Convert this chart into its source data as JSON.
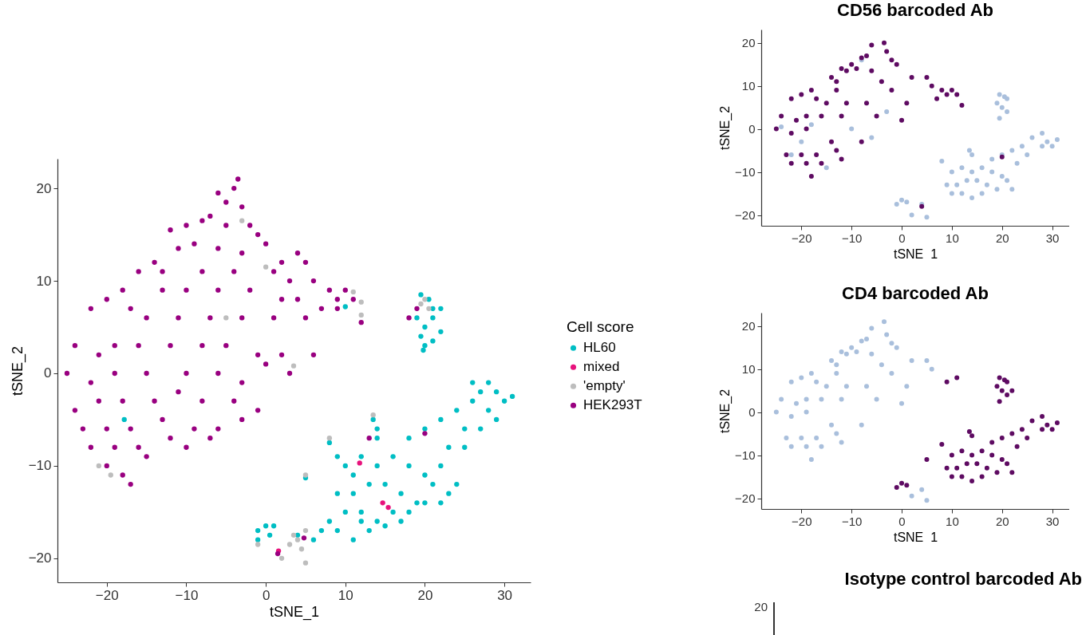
{
  "chart_data": [
    {
      "type": "scatter",
      "xlabel": "tSNE_1",
      "ylabel": "tSNE_2",
      "legend_title": "Cell score",
      "legend": "right",
      "marker": "circle",
      "grid": false,
      "xlim": [
        -26.2,
        33.3
      ],
      "ylim": [
        -22.6,
        23.2
      ],
      "xticks": [
        -20,
        -10,
        0,
        10,
        20,
        30
      ],
      "yticks": [
        -20,
        -10,
        0,
        10,
        20
      ],
      "series": [
        {
          "name": "HL60",
          "color": "#00bec4",
          "x": [
            19.5,
            20.5,
            21,
            22,
            19,
            20,
            21,
            19.5,
            20,
            21,
            19.8,
            22,
            13.5,
            14,
            14,
            8,
            9,
            10,
            11,
            12,
            14,
            16,
            18,
            20,
            22,
            24,
            26,
            27,
            28,
            29,
            30,
            31,
            28,
            26,
            29,
            25,
            23,
            22,
            21,
            23,
            20,
            18,
            17,
            15,
            13,
            11,
            9,
            10,
            8,
            12,
            14,
            16,
            17,
            18,
            19,
            20,
            22,
            13,
            11,
            9,
            7,
            6,
            15,
            12,
            24,
            25,
            27,
            5,
            0,
            -1,
            0.5,
            -1,
            1,
            4,
            -17.8,
            10
          ],
          "values": [
            8.5,
            8,
            7,
            7,
            6,
            5,
            6,
            4,
            3,
            3.5,
            2.5,
            4.5,
            -5,
            -6,
            -7,
            -7.5,
            -9,
            -10,
            -11,
            -9,
            -10,
            -9,
            -7,
            -6,
            -5,
            -4,
            -1,
            -2,
            -1,
            -2,
            -3,
            -2.5,
            -4,
            -3,
            -5,
            -6,
            -8,
            -10,
            -12,
            -13,
            -11,
            -10,
            -13,
            -12,
            -12,
            -13,
            -13,
            -15,
            -16,
            -15,
            -16,
            -15,
            -16,
            -15,
            -14,
            -14,
            -14,
            -17,
            -18,
            -17,
            -17,
            -18,
            -16.5,
            -16,
            -12,
            -8,
            -6,
            -11.3,
            -16.5,
            -17,
            -17.5,
            -18,
            -16.5,
            -17.5,
            -5,
            7.2
          ]
        },
        {
          "name": "mixed",
          "color": "#e7127c",
          "x": [
            11.8,
            14.7,
            15.4,
            1.6
          ],
          "values": [
            -9.7,
            -14,
            -14.5,
            -19.2
          ]
        },
        {
          "name": "'empty'",
          "color": "#bdbdbd",
          "x": [
            -3,
            0,
            -5,
            11,
            12,
            12,
            3.5,
            -21,
            -19.5,
            19.5,
            20,
            20.5,
            8,
            5,
            -1,
            2,
            5,
            3.5,
            4,
            4.5,
            5,
            3,
            13.5
          ],
          "values": [
            16.5,
            11.5,
            6,
            8.8,
            7.7,
            6.3,
            0.8,
            -10,
            -11,
            7.5,
            8,
            7,
            -7,
            -11,
            -18.5,
            -20,
            -20.5,
            -17.5,
            -18,
            -19,
            -17,
            -18.5,
            -4.5
          ]
        },
        {
          "name": "HEK293T",
          "color": "#990080",
          "x": [
            -3.5,
            -4,
            -6,
            -5,
            -3,
            -7,
            -8,
            -5,
            -2,
            -10,
            -12,
            -1,
            0,
            -9,
            -11,
            -6,
            -3,
            -14,
            -16,
            -13,
            -8,
            -4,
            1,
            2,
            4,
            5,
            3,
            6,
            8,
            10,
            11,
            9,
            7,
            4,
            2,
            -2,
            -6,
            -10,
            -13,
            -18,
            -20,
            -22,
            -17,
            -15,
            -11,
            -7,
            -3,
            1,
            5,
            9,
            12,
            -24,
            -21,
            -19,
            -16,
            -12,
            -8,
            -5,
            -1,
            2,
            6,
            -25,
            -22,
            -19,
            -15,
            -10,
            -6,
            -3,
            0,
            3,
            -24,
            -21,
            -18,
            -14,
            -11,
            -8,
            -4,
            -1,
            -23,
            -20,
            -17,
            -13,
            -9,
            -6,
            -22,
            -19,
            -16,
            -12,
            -20,
            -18,
            -17,
            -15,
            -10,
            -7,
            -3,
            18,
            19,
            20,
            13,
            1.5,
            4.8
          ],
          "values": [
            21,
            20,
            19.5,
            18.5,
            18,
            17,
            16.5,
            16,
            16,
            16,
            15.5,
            15,
            14,
            14,
            13.5,
            13.5,
            13,
            12,
            11,
            11,
            11,
            11,
            11,
            12,
            13,
            12,
            10,
            10,
            9,
            9,
            8,
            8,
            7,
            8,
            8,
            9,
            9,
            9,
            9,
            9,
            8,
            7,
            7,
            6,
            6,
            6,
            6,
            6,
            6,
            7,
            5.5,
            3,
            2,
            3,
            3,
            3,
            3,
            3,
            2,
            2,
            2,
            0,
            -1,
            0,
            0,
            0,
            0,
            -1,
            1,
            0,
            -4,
            -3,
            -3,
            -3,
            -2,
            -3,
            -3,
            -4,
            -6,
            -6,
            -6,
            -5,
            -6,
            -6,
            -8,
            -8,
            -8,
            -7,
            -10,
            -11,
            -12,
            -9,
            -8,
            -7,
            -5,
            6,
            7,
            -6.5,
            -7,
            -19.5,
            -17.8
          ]
        }
      ]
    },
    {
      "type": "scatter",
      "title": "CD56 barcoded Ab",
      "xlabel": "tSNE_1",
      "ylabel": "tSNE_2",
      "marker": "circle",
      "grid": false,
      "xlim": [
        -28,
        33.4
      ],
      "ylim": [
        -22.5,
        23.1
      ],
      "xticks": [
        -20,
        -10,
        0,
        10,
        20,
        30
      ],
      "yticks": [
        -20,
        -10,
        0,
        10,
        20
      ],
      "series": [
        {
          "color": "#a9bfdc",
          "x": [
            19.5,
            20.5,
            21,
            19,
            20,
            21,
            19.5,
            13.5,
            14,
            8,
            10,
            12,
            14,
            16,
            18,
            20,
            22,
            24,
            26,
            28,
            29,
            30,
            31,
            28,
            25,
            23,
            21,
            20,
            18,
            17,
            15,
            13,
            11,
            9,
            10,
            12,
            14,
            16,
            19,
            22,
            0,
            -1,
            1,
            4,
            2,
            5,
            -10,
            -15,
            -20,
            -6,
            -24,
            -8,
            -18,
            -3,
            -22
          ],
          "values": [
            8,
            7.5,
            7,
            6,
            5,
            4,
            2.5,
            -5,
            -6,
            -7.5,
            -10,
            -9,
            -10,
            -9,
            -7,
            -6,
            -5,
            -4,
            -2,
            -1,
            -3,
            -4,
            -2.5,
            -4,
            -6,
            -8,
            -12,
            -11,
            -10,
            -13,
            -12,
            -12,
            -13,
            -13,
            -15,
            -15,
            -16,
            -15,
            -14,
            -14,
            -16.5,
            -17.5,
            -17,
            -17.5,
            -20,
            -20.5,
            0,
            -9,
            -3,
            -2,
            0.5,
            16,
            1,
            4,
            -6
          ]
        },
        {
          "color": "#5e0b62",
          "x": [
            -3.5,
            -6,
            -3,
            -7,
            -8,
            -2,
            -10,
            -12,
            -1,
            -9,
            -11,
            -6,
            -14,
            -13,
            -4,
            2,
            5,
            6,
            8,
            10,
            11,
            9,
            7,
            -2,
            -13,
            -18,
            -20,
            -22,
            -17,
            -15,
            -11,
            -7,
            1,
            12,
            -24,
            -21,
            -19,
            -16,
            -12,
            -5,
            0,
            -25,
            -22,
            -19,
            -14,
            -8,
            -23,
            -20,
            -17,
            -13,
            -22,
            -19,
            -16,
            -12,
            -18,
            4,
            20
          ],
          "values": [
            20,
            19.5,
            18,
            17,
            16.5,
            16,
            15,
            14,
            15,
            14,
            13.5,
            13.5,
            12,
            11,
            11,
            12,
            12,
            10,
            9,
            9,
            8,
            8,
            7,
            9,
            9,
            9,
            8,
            7,
            7,
            6,
            6,
            6,
            6,
            5.5,
            3,
            2,
            3,
            3,
            3,
            3,
            2,
            0,
            -1,
            0,
            -3,
            -3,
            -6,
            -6,
            -6,
            -5,
            -8,
            -8,
            -8,
            -7,
            -11,
            -18,
            -6.5
          ]
        }
      ]
    },
    {
      "type": "scatter",
      "title": "CD4 barcoded Ab",
      "xlabel": "tSNE_1",
      "ylabel": "tSNE_2",
      "marker": "circle",
      "grid": false,
      "xlim": [
        -28,
        33.4
      ],
      "ylim": [
        -22.5,
        23.1
      ],
      "xticks": [
        -20,
        -10,
        0,
        10,
        20,
        30
      ],
      "yticks": [
        -20,
        -10,
        0,
        10,
        20
      ],
      "series": [
        {
          "color": "#a9bfdc",
          "x": [
            -3.5,
            -6,
            -3,
            -7,
            -8,
            -2,
            -10,
            -12,
            -1,
            -9,
            -11,
            -6,
            -14,
            -13,
            -4,
            2,
            5,
            6,
            -2,
            -13,
            -18,
            -20,
            -22,
            -17,
            -15,
            -11,
            -7,
            1,
            -24,
            -21,
            -19,
            -16,
            -12,
            -5,
            0,
            -25,
            -22,
            -19,
            -14,
            -8,
            -23,
            -20,
            -17,
            -13,
            -22,
            -19,
            -16,
            -12,
            -18,
            2,
            5,
            4
          ],
          "values": [
            21,
            19.5,
            18,
            17,
            16.5,
            16,
            15,
            14,
            15,
            14,
            13.5,
            13.5,
            12,
            11,
            11,
            12,
            12,
            10,
            9,
            9,
            9,
            8,
            7,
            7,
            6,
            6,
            6,
            6,
            3,
            2,
            3,
            3,
            3,
            3,
            2,
            0,
            -1,
            0,
            -3,
            -3,
            -6,
            -6,
            -6,
            -5,
            -8,
            -8,
            -8,
            -7,
            -11,
            -19.5,
            -20.5,
            -18
          ]
        },
        {
          "color": "#5e0b62",
          "x": [
            19.5,
            20.5,
            21,
            19,
            20,
            21,
            19.5,
            22,
            13.5,
            14,
            8,
            10,
            12,
            14,
            16,
            18,
            20,
            22,
            24,
            26,
            28,
            29,
            30,
            31,
            28,
            25,
            23,
            21,
            20,
            18,
            17,
            15,
            13,
            11,
            9,
            10,
            12,
            14,
            16,
            19,
            22,
            0,
            -1,
            1,
            9,
            11,
            5
          ],
          "values": [
            8,
            7.5,
            7,
            6,
            5,
            4,
            2.5,
            5,
            -4.5,
            -5.5,
            -7.5,
            -10,
            -9,
            -10,
            -9,
            -7,
            -6,
            -5,
            -4,
            -2,
            -1,
            -3,
            -4,
            -2.5,
            -4,
            -6,
            -8,
            -12,
            -11,
            -10,
            -13,
            -12,
            -12,
            -13,
            -13,
            -15,
            -15,
            -16,
            -15,
            -14,
            -14,
            -16.5,
            -17.5,
            -17,
            7,
            8,
            -11
          ]
        }
      ]
    },
    {
      "type": "other",
      "title": "Isotype control barcoded Ab",
      "annotations": [
        "20"
      ]
    }
  ]
}
